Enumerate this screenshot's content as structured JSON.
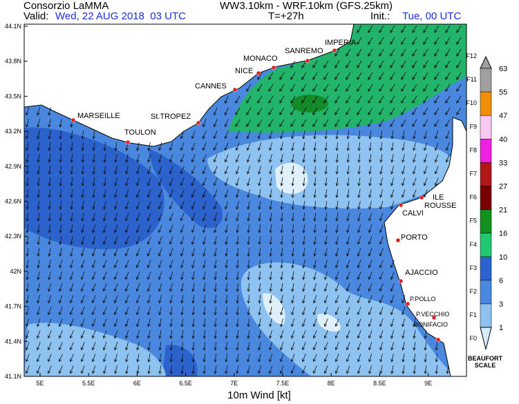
{
  "header": {
    "title": "Consorzio LaMMA",
    "valid_label": "Valid:",
    "valid_time": "Wed, 22 AUG 2018  03 UTC",
    "model": "WW3.10km - WRF.10km (GFS.25km)",
    "lead": "T=+27h",
    "init_label": "Init.:",
    "init_time": "Tue, 00 UTC"
  },
  "map": {
    "lat_ticks": [
      "44.1N",
      "43.8N",
      "43.5N",
      "43.2N",
      "42.9N",
      "42.6N",
      "42.3N",
      "42N",
      "41.7N",
      "41.4N",
      "41.1N"
    ],
    "lon_ticks": [
      "5E",
      "5.5E",
      "6E",
      "6.5E",
      "7E",
      "7.5E",
      "8E",
      "8.5E",
      "9E"
    ],
    "x_label": "10m Wind [kt]",
    "cities": [
      {
        "label": "IMPERIA"
      },
      {
        "label": "SANREMO"
      },
      {
        "label": "MONACO"
      },
      {
        "label": "NICE"
      },
      {
        "label": "CANNES"
      },
      {
        "label": "St.TROPEZ"
      },
      {
        "label": "MARSEILLE"
      },
      {
        "label": "TOULON"
      },
      {
        "label": "ILE"
      },
      {
        "label": "ROUSSE"
      },
      {
        "label": "CALVI"
      },
      {
        "label": "PORTO"
      },
      {
        "label": "AJACCIO"
      },
      {
        "label": "P.POLLO"
      },
      {
        "label": "P.VECCHIO"
      },
      {
        "label": "BONIFACIO"
      }
    ]
  },
  "legend": {
    "knots": [
      "63",
      "55",
      "47",
      "40",
      "33",
      "27",
      "21",
      "16",
      "10",
      "6",
      "3",
      "1"
    ],
    "beaufort": [
      "F12",
      "F11",
      "F10",
      "F9",
      "F8",
      "F7",
      "F6",
      "F5",
      "F4",
      "F3",
      "F2",
      "F1",
      "F0"
    ],
    "title": [
      "BEAUFORT",
      "SCALE"
    ]
  }
}
